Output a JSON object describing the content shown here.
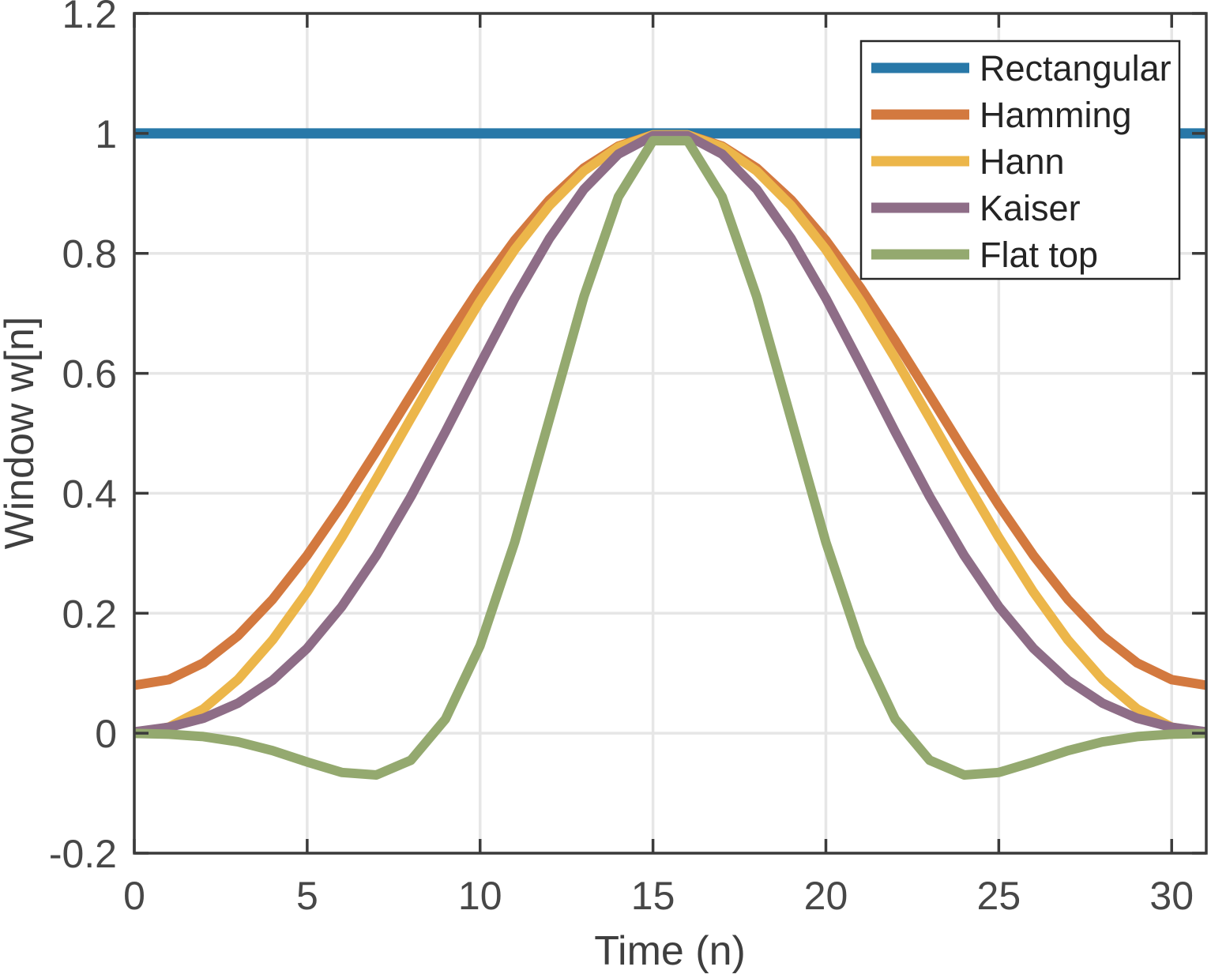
{
  "figure": {
    "background": "#ffffff",
    "axis_color": "#3b3b3b",
    "grid_color": "#e6e6e6",
    "tick_label_color": "#474747",
    "label_color": "#3f3f3f",
    "legend": {
      "position": "top-right",
      "background": "#ffffff",
      "border_color": "#262626",
      "text_color": "#242424"
    }
  },
  "chart_data": {
    "type": "line",
    "title": "",
    "xlabel": "Time (n)",
    "ylabel": "Window w[n]",
    "xlim": [
      0,
      31
    ],
    "ylim": [
      -0.2,
      1.2
    ],
    "x_ticks": [
      0,
      5,
      10,
      15,
      20,
      25,
      30
    ],
    "y_ticks": [
      -0.2,
      0,
      0.2,
      0.4,
      0.6,
      0.8,
      1,
      1.2
    ],
    "grid": true,
    "legend_entries": [
      "Rectangular",
      "Hamming",
      "Hann",
      "Kaiser",
      "Flat top"
    ],
    "x": [
      0,
      1,
      2,
      3,
      4,
      5,
      6,
      7,
      8,
      9,
      10,
      11,
      12,
      13,
      14,
      15,
      16,
      17,
      18,
      19,
      20,
      21,
      22,
      23,
      24,
      25,
      26,
      27,
      28,
      29,
      30,
      31
    ],
    "series": [
      {
        "name": "Rectangular",
        "color": "#2878a8",
        "line_width": 13,
        "values": [
          1,
          1,
          1,
          1,
          1,
          1,
          1,
          1,
          1,
          1,
          1,
          1,
          1,
          1,
          1,
          1,
          1,
          1,
          1,
          1,
          1,
          1,
          1,
          1,
          1,
          1,
          1,
          1,
          1,
          1,
          1,
          1
        ]
      },
      {
        "name": "Hamming",
        "color": "#d3793f",
        "line_width": 12,
        "values": [
          0.08,
          0.0894,
          0.1173,
          0.1625,
          0.2231,
          0.2967,
          0.3802,
          0.4704,
          0.5633,
          0.6553,
          0.7426,
          0.8216,
          0.889,
          0.9422,
          0.9789,
          0.9976,
          0.9976,
          0.9789,
          0.9422,
          0.889,
          0.8216,
          0.7426,
          0.6553,
          0.5633,
          0.4704,
          0.3802,
          0.2967,
          0.2231,
          0.1625,
          0.1173,
          0.0894,
          0.08
        ]
      },
      {
        "name": "Hann",
        "color": "#ecb64a",
        "line_width": 12,
        "values": [
          0,
          0.0102,
          0.0405,
          0.0896,
          0.1555,
          0.2355,
          0.3263,
          0.4243,
          0.5253,
          0.6253,
          0.7202,
          0.8061,
          0.8794,
          0.9372,
          0.9771,
          0.9974,
          0.9974,
          0.9771,
          0.9372,
          0.8794,
          0.8061,
          0.7202,
          0.6253,
          0.5253,
          0.4243,
          0.3263,
          0.2355,
          0.1555,
          0.0896,
          0.0405,
          0.0102,
          0
        ]
      },
      {
        "name": "Kaiser",
        "color": "#8e6d87",
        "line_width": 12,
        "values": [
          0.0023,
          0.0099,
          0.0249,
          0.0501,
          0.0883,
          0.1417,
          0.211,
          0.2961,
          0.3947,
          0.503,
          0.615,
          0.7249,
          0.8244,
          0.9067,
          0.9654,
          0.9961,
          0.9961,
          0.9654,
          0.9067,
          0.8244,
          0.7249,
          0.615,
          0.503,
          0.3947,
          0.2961,
          0.211,
          0.1417,
          0.0883,
          0.0501,
          0.0249,
          0.0099,
          0.0023
        ]
      },
      {
        "name": "Flat top",
        "color": "#94a96f",
        "line_width": 12,
        "values": [
          -0.0004,
          -0.0016,
          -0.0056,
          -0.0144,
          -0.029,
          -0.048,
          -0.0654,
          -0.0696,
          -0.045,
          0.0237,
          0.1459,
          0.3182,
          0.5228,
          0.7277,
          0.8942,
          0.9878,
          0.9878,
          0.8942,
          0.7277,
          0.5228,
          0.3182,
          0.1459,
          0.0237,
          -0.045,
          -0.0696,
          -0.0654,
          -0.048,
          -0.029,
          -0.0144,
          -0.0056,
          -0.0016,
          -0.0004
        ]
      }
    ]
  }
}
